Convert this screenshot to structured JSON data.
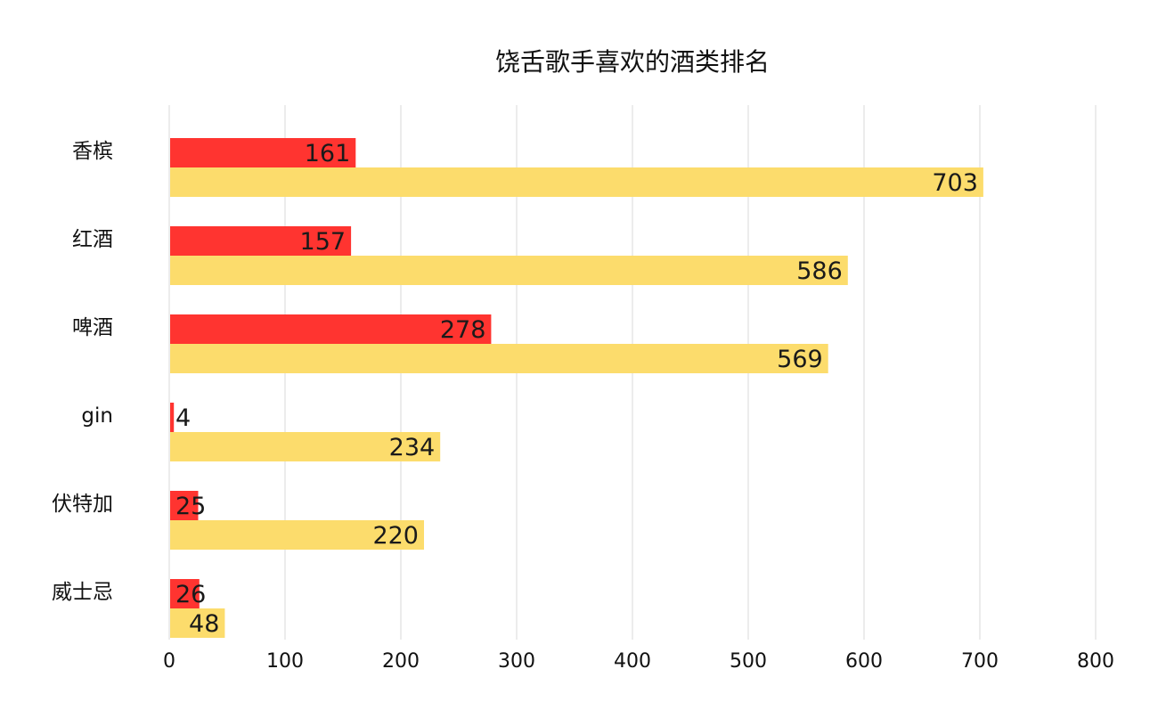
{
  "chart_data": {
    "type": "bar",
    "orientation": "horizontal",
    "title": "饶舌歌手喜欢的酒类排名",
    "categories": [
      "香槟",
      "红酒",
      "啤酒",
      "gin",
      "伏特加",
      "威士忌"
    ],
    "series": [
      {
        "values": [
          161,
          157,
          278,
          4,
          25,
          26
        ],
        "color": "#ff3430"
      },
      {
        "values": [
          703,
          586,
          569,
          234,
          220,
          48
        ],
        "color": "#fcdc6c"
      }
    ],
    "xlim": [
      0,
      800
    ],
    "xticks": [
      0,
      100,
      200,
      300,
      400,
      500,
      600,
      700,
      800
    ],
    "grid": true,
    "legend": "none"
  }
}
